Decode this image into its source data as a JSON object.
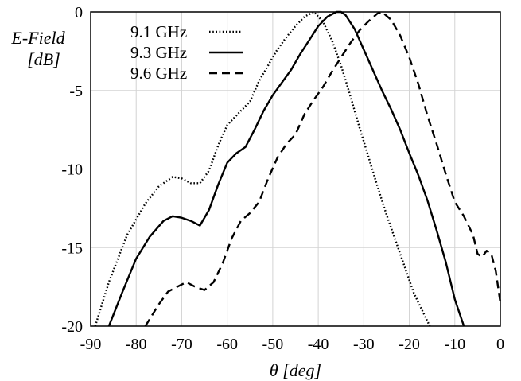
{
  "chart_data": {
    "type": "line",
    "xlabel": "θ [deg]",
    "ylabel_line1": "E-Field",
    "ylabel_line2": "[dB]",
    "xlim": [
      -90,
      0
    ],
    "ylim": [
      -20,
      0
    ],
    "xticks": [
      -90,
      -80,
      -70,
      -60,
      -50,
      -40,
      -30,
      -20,
      -10,
      0
    ],
    "yticks": [
      0,
      -5,
      -10,
      -15,
      -20
    ],
    "grid": true,
    "legend_position": "top-left",
    "series": [
      {
        "name": "9.1 GHz",
        "dash": "dotted",
        "x": [
          -89,
          -86,
          -82,
          -78,
          -75,
          -72,
          -70,
          -68,
          -66,
          -64,
          -62,
          -60,
          -57,
          -55,
          -53,
          -51,
          -49,
          -47,
          -45,
          -43,
          -41,
          -39,
          -37,
          -35,
          -33,
          -31,
          -29,
          -27,
          -25,
          -22,
          -19,
          -17,
          -15.5
        ],
        "y": [
          -20,
          -17.2,
          -14.2,
          -12.2,
          -11.1,
          -10.5,
          -10.6,
          -10.9,
          -10.9,
          -10.1,
          -8.5,
          -7.2,
          -6.3,
          -5.7,
          -4.4,
          -3.4,
          -2.4,
          -1.6,
          -0.9,
          -0.3,
          0,
          -0.6,
          -1.8,
          -3.4,
          -5.3,
          -7.3,
          -9.2,
          -11.1,
          -12.9,
          -15.4,
          -17.9,
          -19.1,
          -20
        ]
      },
      {
        "name": "9.3 GHz",
        "dash": "solid",
        "x": [
          -86,
          -83,
          -80,
          -77,
          -74,
          -72,
          -70,
          -68,
          -66,
          -64,
          -62,
          -60,
          -58,
          -56,
          -54,
          -52,
          -50,
          -48,
          -46,
          -44,
          -42,
          -40,
          -38,
          -36,
          -35,
          -34,
          -32,
          -30,
          -28,
          -26,
          -24,
          -22,
          -20,
          -18,
          -16,
          -14,
          -12,
          -10,
          -8
        ],
        "y": [
          -20,
          -17.8,
          -15.7,
          -14.3,
          -13.3,
          -13.0,
          -13.1,
          -13.3,
          -13.6,
          -12.6,
          -11.0,
          -9.6,
          -9.0,
          -8.6,
          -7.5,
          -6.3,
          -5.3,
          -4.5,
          -3.7,
          -2.7,
          -1.8,
          -0.9,
          -0.3,
          0,
          0,
          -0.2,
          -1.1,
          -2.4,
          -3.7,
          -5.0,
          -6.2,
          -7.5,
          -9.0,
          -10.4,
          -12.0,
          -13.9,
          -15.9,
          -18.3,
          -20
        ]
      },
      {
        "name": "9.6 GHz",
        "dash": "dashed",
        "x": [
          -78,
          -75,
          -73,
          -71,
          -69,
          -67,
          -65,
          -63,
          -61,
          -59,
          -57,
          -55,
          -53,
          -51,
          -49,
          -47,
          -45,
          -43,
          -41,
          -39,
          -37,
          -35,
          -33,
          -31,
          -29,
          -27,
          -26,
          -24,
          -22,
          -20,
          -18,
          -16,
          -14,
          -12,
          -10,
          -8,
          -6,
          -5,
          -4,
          -3,
          -2,
          -1,
          0
        ],
        "y": [
          -20,
          -18.6,
          -17.8,
          -17.5,
          -17.2,
          -17.5,
          -17.7,
          -17.2,
          -16.0,
          -14.4,
          -13.3,
          -12.8,
          -12.1,
          -10.6,
          -9.3,
          -8.4,
          -7.8,
          -6.5,
          -5.6,
          -4.8,
          -3.8,
          -2.9,
          -2.0,
          -1.2,
          -0.6,
          -0.1,
          0,
          -0.5,
          -1.5,
          -2.9,
          -4.6,
          -6.6,
          -8.4,
          -10.3,
          -12.1,
          -13.0,
          -14.2,
          -15.4,
          -15.6,
          -15.2,
          -15.4,
          -16.5,
          -18.5
        ]
      }
    ]
  }
}
